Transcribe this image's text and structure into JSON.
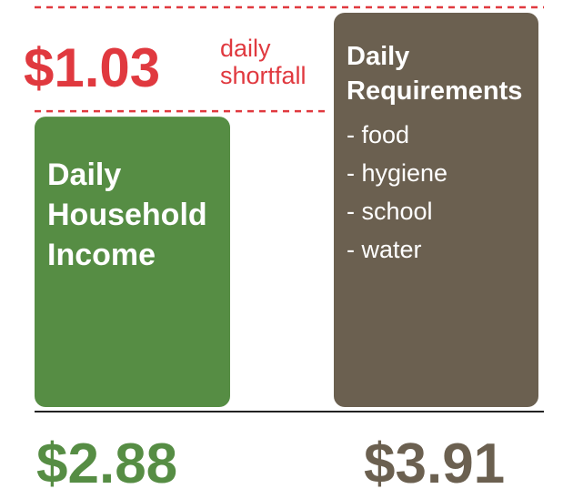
{
  "chart_data": {
    "type": "bar",
    "categories": [
      "Daily Household Income",
      "Daily Requirements"
    ],
    "values": [
      2.88,
      3.91
    ],
    "value_labels": [
      "$2.88",
      "$3.91"
    ],
    "colors": [
      "#568d44",
      "#6b6050"
    ],
    "items": [
      "- food",
      "- hygiene",
      "- school",
      "- water"
    ],
    "shortfall": {
      "value": 1.03,
      "label": "$1.03",
      "text": [
        "daily",
        "shortfall"
      ],
      "color": "#e0393f"
    }
  }
}
